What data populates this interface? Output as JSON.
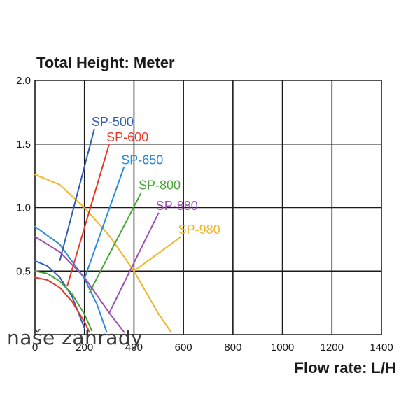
{
  "chart_data": {
    "type": "line",
    "title": "Total Height:  Meter",
    "xlabel": "Flow rate:  L/H",
    "ylabel": "",
    "xlim": [
      0,
      1400
    ],
    "ylim": [
      0,
      2.0
    ],
    "x_ticks": [
      "0",
      "200",
      "400",
      "600",
      "800",
      "1000",
      "1200",
      "1400"
    ],
    "y_ticks": [
      "0.5",
      "1.0",
      "1.5",
      "2.0"
    ],
    "grid": true,
    "series": [
      {
        "name": "SP-500",
        "color": "#2f5fb3",
        "x": [
          0,
          50,
          100,
          150,
          200
        ],
        "y": [
          0.58,
          0.54,
          0.45,
          0.3,
          0.05
        ]
      },
      {
        "name": "SP-600",
        "color": "#e53a2a",
        "x": [
          0,
          50,
          100,
          150,
          200,
          220
        ],
        "y": [
          0.45,
          0.43,
          0.37,
          0.26,
          0.1,
          0.02
        ]
      },
      {
        "name": "SP-650",
        "color": "#2c8ad6",
        "x": [
          0,
          100,
          200,
          250,
          290
        ],
        "y": [
          0.85,
          0.71,
          0.44,
          0.24,
          0.02
        ]
      },
      {
        "name": "SP-800",
        "color": "#4aa63a",
        "x": [
          0,
          50,
          100,
          150,
          200,
          230
        ],
        "y": [
          0.5,
          0.48,
          0.42,
          0.32,
          0.16,
          0.03
        ]
      },
      {
        "name": "SP-880",
        "color": "#9b4fb0",
        "x": [
          0,
          100,
          200,
          300,
          360
        ],
        "y": [
          0.77,
          0.65,
          0.45,
          0.17,
          0.02
        ]
      },
      {
        "name": "SP-980",
        "color": "#efb62a",
        "x": [
          0,
          100,
          200,
          300,
          400,
          500,
          550
        ],
        "y": [
          1.26,
          1.18,
          1.0,
          0.78,
          0.5,
          0.16,
          0.02
        ]
      }
    ],
    "annotations": [
      {
        "series": "SP-500",
        "label": "SP-500",
        "from": [
          100,
          0.58
        ],
        "to": [
          240,
          1.62
        ]
      },
      {
        "series": "SP-600",
        "label": "SP-600",
        "from": [
          130,
          0.38
        ],
        "to": [
          300,
          1.5
        ]
      },
      {
        "series": "SP-650",
        "label": "SP-650",
        "from": [
          200,
          0.44
        ],
        "to": [
          360,
          1.32
        ]
      },
      {
        "series": "SP-800",
        "label": "SP-800",
        "from": [
          220,
          0.33
        ],
        "to": [
          430,
          1.12
        ]
      },
      {
        "series": "SP-880",
        "label": "SP-880",
        "from": [
          300,
          0.17
        ],
        "to": [
          500,
          0.96
        ]
      },
      {
        "series": "SP-980",
        "label": "SP-980",
        "from": [
          400,
          0.5
        ],
        "to": [
          590,
          0.77
        ]
      }
    ]
  },
  "watermark": "naše zahrady"
}
